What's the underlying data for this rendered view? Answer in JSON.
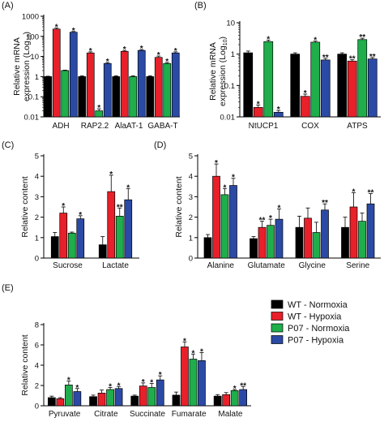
{
  "legend": {
    "placement": "right-of-panel-E",
    "entries": [
      {
        "label": "WT - Normoxia",
        "color": "#000000"
      },
      {
        "label": "WT - Hypoxia",
        "color": "#e8202a"
      },
      {
        "label": "P07 - Normoxia",
        "color": "#1fae4b"
      },
      {
        "label": "P07 - Hypoxia",
        "color": "#2b4aa5"
      }
    ]
  },
  "chart_data": [
    {
      "panel": "(A)",
      "type": "bar",
      "scale": "log",
      "ylabel": "Relative mRNA expression (Log10)",
      "ylim": [
        0.01,
        1000
      ],
      "yticks": [
        "0.01",
        "0.1",
        "1",
        "10",
        "100",
        "1000"
      ],
      "categories": [
        "ADH",
        "RAP2.2",
        "AlaAT-1",
        "GABA-T"
      ],
      "series": [
        {
          "name": "WT - Normoxia",
          "values": [
            1.0,
            1.0,
            1.0,
            1.0
          ],
          "errors": [
            0.05,
            0.1,
            0.1,
            0.1
          ],
          "marks": [
            "",
            "",
            "",
            ""
          ]
        },
        {
          "name": "WT - Hypoxia",
          "values": [
            230,
            15,
            18,
            9
          ],
          "errors": [
            30,
            2,
            2,
            1.5
          ],
          "marks": [
            "*",
            "*",
            "*",
            "*"
          ]
        },
        {
          "name": "P07 - Normoxia",
          "values": [
            2.0,
            0.02,
            1.0,
            4.5
          ],
          "errors": [
            0.1,
            0.005,
            0.1,
            0.5
          ],
          "marks": [
            "",
            "*",
            "",
            "*"
          ]
        },
        {
          "name": "P07 - Hypoxia",
          "values": [
            160,
            4.5,
            20,
            15
          ],
          "errors": [
            15,
            0.5,
            2,
            2
          ],
          "marks": [
            "*",
            "*",
            "*",
            "*"
          ]
        }
      ]
    },
    {
      "panel": "(B)",
      "type": "bar",
      "scale": "log",
      "ylabel": "Relative mRNA expression (Log10)",
      "ylim": [
        0.01,
        10
      ],
      "yticks": [
        "0.01",
        "0.1",
        "1",
        "10"
      ],
      "categories": [
        "NtUCP1",
        "COX",
        "ATPS"
      ],
      "series": [
        {
          "name": "WT - Normoxia",
          "values": [
            1.1,
            1.0,
            1.0
          ],
          "errors": [
            0.15,
            0.1,
            0.1
          ],
          "marks": [
            "",
            "",
            ""
          ]
        },
        {
          "name": "WT - Hypoxia",
          "values": [
            0.02,
            0.045,
            0.6
          ],
          "errors": [
            0.004,
            0.008,
            0.06
          ],
          "marks": [
            "*",
            "*",
            "**"
          ]
        },
        {
          "name": "P07 - Normoxia",
          "values": [
            2.5,
            2.4,
            2.9
          ],
          "errors": [
            0.3,
            0.2,
            0.3
          ],
          "marks": [
            "*",
            "*",
            "**"
          ]
        },
        {
          "name": "P07 - Hypoxia",
          "values": [
            0.014,
            0.65,
            0.7
          ],
          "errors": [
            0.002,
            0.08,
            0.08
          ],
          "marks": [
            "*",
            "**",
            "**"
          ]
        }
      ]
    },
    {
      "panel": "(C)",
      "type": "bar",
      "scale": "linear",
      "ylabel": "Relative content",
      "ylim": [
        0,
        5
      ],
      "yticks": [
        "0",
        "1",
        "2",
        "3",
        "4",
        "5"
      ],
      "categories": [
        "Sucrose",
        "Lactate"
      ],
      "series": [
        {
          "name": "WT - Normoxia",
          "values": [
            1.05,
            0.65
          ],
          "errors": [
            0.2,
            0.4
          ],
          "marks": [
            "",
            ""
          ]
        },
        {
          "name": "WT - Hypoxia",
          "values": [
            2.2,
            3.25
          ],
          "errors": [
            0.3,
            0.8
          ],
          "marks": [
            "*",
            "*"
          ]
        },
        {
          "name": "P07 - Normoxia",
          "values": [
            1.22,
            2.05
          ],
          "errors": [
            0.05,
            0.4
          ],
          "marks": [
            "",
            "**"
          ]
        },
        {
          "name": "P07 - Hypoxia",
          "values": [
            1.92,
            2.85
          ],
          "errors": [
            0.15,
            0.55
          ],
          "marks": [
            "*",
            "*"
          ]
        }
      ]
    },
    {
      "panel": "(D)",
      "type": "bar",
      "scale": "linear",
      "ylabel": "Relative content",
      "ylim": [
        0,
        5
      ],
      "yticks": [
        "0",
        "1",
        "2",
        "3",
        "4",
        "5"
      ],
      "categories": [
        "Alanine",
        "Glutamate",
        "Glycine",
        "Serine"
      ],
      "series": [
        {
          "name": "WT - Normoxia",
          "values": [
            1.0,
            0.95,
            1.5,
            1.5
          ],
          "errors": [
            0.15,
            0.1,
            0.55,
            0.5
          ],
          "marks": [
            "",
            "",
            "",
            ""
          ]
        },
        {
          "name": "WT - Hypoxia",
          "values": [
            4.0,
            1.5,
            1.95,
            2.5
          ],
          "errors": [
            0.6,
            0.3,
            0.5,
            0.7
          ],
          "marks": [
            "*",
            "**",
            "",
            "*"
          ]
        },
        {
          "name": "P07 - Normoxia",
          "values": [
            3.1,
            1.6,
            1.25,
            1.8
          ],
          "errors": [
            0.3,
            0.3,
            0.5,
            0.4
          ],
          "marks": [
            "*",
            "*",
            "",
            ""
          ]
        },
        {
          "name": "P07 - Hypoxia",
          "values": [
            3.55,
            1.9,
            2.35,
            2.65
          ],
          "errors": [
            0.35,
            0.5,
            0.3,
            0.5
          ],
          "marks": [
            "*",
            "*",
            "**",
            "**"
          ]
        }
      ]
    },
    {
      "panel": "(E)",
      "type": "bar",
      "scale": "linear",
      "ylabel": "Relative content",
      "ylim": [
        0,
        8
      ],
      "yticks": [
        "0",
        "2",
        "4",
        "6",
        "8"
      ],
      "categories": [
        "Pyruvate",
        "Citrate",
        "Succinate",
        "Fumarate",
        "Malate"
      ],
      "series": [
        {
          "name": "WT - Normoxia",
          "values": [
            0.8,
            0.9,
            0.95,
            1.05,
            0.95
          ],
          "errors": [
            0.15,
            0.15,
            0.1,
            0.3,
            0.15
          ],
          "marks": [
            "",
            "",
            "",
            "",
            ""
          ]
        },
        {
          "name": "WT - Hypoxia",
          "values": [
            0.7,
            1.25,
            1.95,
            5.8,
            1.1
          ],
          "errors": [
            0.1,
            0.3,
            0.3,
            0.5,
            0.2
          ],
          "marks": [
            "",
            "",
            "*",
            "*",
            ""
          ]
        },
        {
          "name": "P07 - Normoxia",
          "values": [
            2.05,
            1.6,
            1.8,
            4.6,
            1.5
          ],
          "errors": [
            0.4,
            0.2,
            0.4,
            0.5,
            0.1
          ],
          "marks": [
            "*",
            "*",
            "*",
            "*",
            "*"
          ]
        },
        {
          "name": "P07 - Hypoxia",
          "values": [
            1.4,
            1.7,
            2.55,
            4.45,
            1.6
          ],
          "errors": [
            0.3,
            0.2,
            0.4,
            0.8,
            0.3
          ],
          "marks": [
            "*",
            "*",
            "*",
            "*",
            "**"
          ]
        }
      ]
    }
  ]
}
